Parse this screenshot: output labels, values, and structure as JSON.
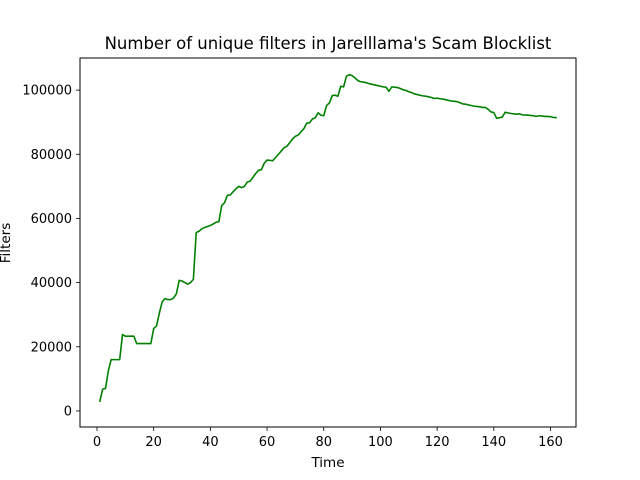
{
  "chart_data": {
    "type": "line",
    "title": "Number of unique filters in Jarelllama's Scam Blocklist",
    "xlabel": "Time",
    "ylabel": "Filters",
    "xlim": [
      -6,
      169
    ],
    "ylim": [
      -5000,
      110000
    ],
    "x_ticks": [
      0,
      20,
      40,
      60,
      80,
      100,
      120,
      140,
      160
    ],
    "x_tick_labels": [
      "0",
      "20",
      "40",
      "60",
      "80",
      "100",
      "120",
      "140",
      "160"
    ],
    "y_ticks": [
      0,
      20000,
      40000,
      60000,
      80000,
      100000
    ],
    "y_tick_labels": [
      "0",
      "20000",
      "40000",
      "60000",
      "80000",
      "100000"
    ],
    "grid": false,
    "series": [
      {
        "color": "#008000",
        "x": [
          1,
          2,
          3,
          4,
          5,
          6,
          7,
          8,
          9,
          10,
          11,
          12,
          13,
          14,
          15,
          16,
          17,
          18,
          19,
          20,
          21,
          22,
          23,
          24,
          25,
          26,
          27,
          28,
          29,
          30,
          31,
          32,
          33,
          34,
          35,
          36,
          37,
          38,
          39,
          40,
          41,
          42,
          43,
          44,
          45,
          46,
          47,
          48,
          49,
          50,
          51,
          52,
          53,
          54,
          55,
          56,
          57,
          58,
          59,
          60,
          61,
          62,
          63,
          64,
          65,
          66,
          67,
          68,
          69,
          70,
          71,
          72,
          73,
          74,
          75,
          76,
          77,
          78,
          79,
          80,
          81,
          82,
          83,
          84,
          85,
          86,
          87,
          88,
          89,
          90,
          91,
          92,
          93,
          94,
          95,
          96,
          97,
          98,
          99,
          100,
          101,
          102,
          103,
          104,
          105,
          106,
          107,
          108,
          109,
          110,
          111,
          112,
          113,
          114,
          115,
          116,
          117,
          118,
          119,
          120,
          121,
          122,
          123,
          124,
          125,
          126,
          127,
          128,
          129,
          130,
          131,
          132,
          133,
          134,
          135,
          136,
          137,
          138,
          139,
          140,
          141,
          142,
          143,
          144,
          145,
          146,
          147,
          148,
          149,
          150,
          151,
          152,
          153,
          154,
          155,
          156,
          157,
          158,
          159,
          160,
          161,
          162
        ],
        "values": [
          3000,
          6800,
          7000,
          12500,
          16000,
          16000,
          16000,
          16000,
          23800,
          23300,
          23300,
          23300,
          23300,
          21000,
          21000,
          21000,
          21000,
          21000,
          21000,
          25700,
          26500,
          30500,
          34000,
          35000,
          34700,
          34700,
          35200,
          36500,
          40700,
          40500,
          40000,
          39500,
          40000,
          41000,
          55600,
          56000,
          56800,
          57200,
          57500,
          57800,
          58300,
          58800,
          59000,
          64000,
          64900,
          67200,
          67300,
          68300,
          69200,
          70000,
          69600,
          70000,
          71300,
          71600,
          72800,
          74000,
          75000,
          75200,
          77200,
          78200,
          78100,
          78000,
          79000,
          80000,
          81000,
          82000,
          82500,
          83600,
          84800,
          85600,
          86000,
          87000,
          88000,
          89700,
          89800,
          91000,
          91400,
          92900,
          92200,
          92000,
          95200,
          96000,
          98300,
          98400,
          98100,
          101200,
          101000,
          104300,
          104800,
          104500,
          103800,
          103000,
          102600,
          102500,
          102300,
          102000,
          101800,
          101600,
          101400,
          101200,
          101000,
          100900,
          99600,
          101000,
          100900,
          100800,
          100500,
          100100,
          99900,
          99500,
          99200,
          98800,
          98600,
          98400,
          98200,
          98100,
          97900,
          97700,
          97400,
          97500,
          97300,
          97200,
          97000,
          96800,
          96600,
          96500,
          96400,
          96100,
          95700,
          95600,
          95400,
          95200,
          95000,
          94900,
          94800,
          94600,
          94600,
          94000,
          93200,
          93000,
          91200,
          91400,
          91600,
          93100,
          92900,
          92700,
          92600,
          92500,
          92600,
          92300,
          92200,
          92200,
          92100,
          92000,
          91800,
          92000,
          91900,
          91800,
          91800,
          91700,
          91500,
          91400
        ]
      }
    ]
  }
}
